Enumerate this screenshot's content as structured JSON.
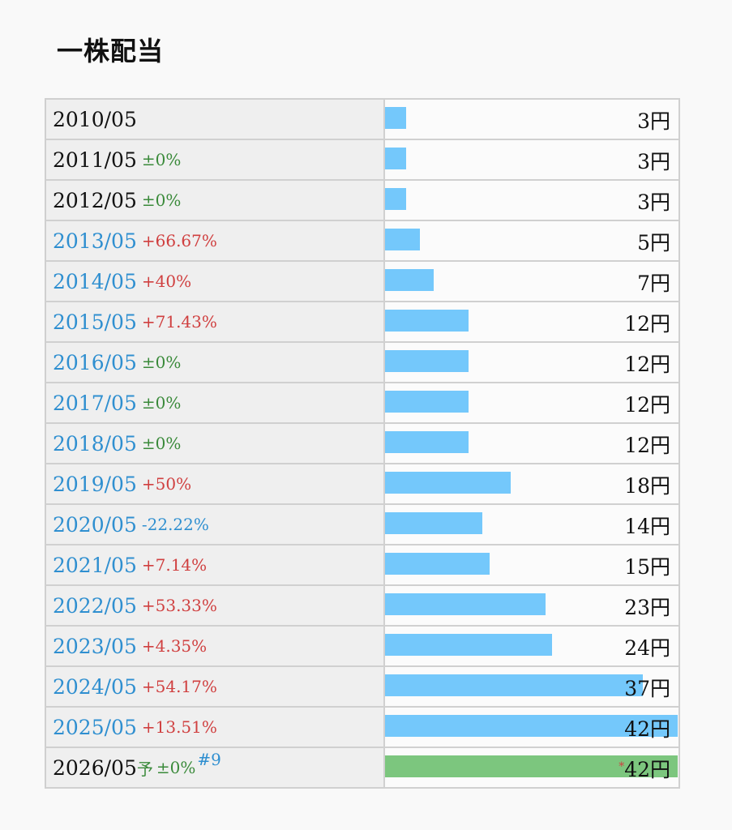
{
  "title": "一株配当",
  "chart_data": {
    "type": "bar",
    "title": "一株配当",
    "unit": "円",
    "xlim": [
      0,
      42
    ],
    "rows": [
      {
        "period": "2010/05",
        "change": "",
        "change_color": "green",
        "year_color": "black",
        "value": 3,
        "value_label": "3円",
        "forecast": false
      },
      {
        "period": "2011/05",
        "change": "±0%",
        "change_color": "green",
        "year_color": "black",
        "value": 3,
        "value_label": "3円",
        "forecast": false
      },
      {
        "period": "2012/05",
        "change": "±0%",
        "change_color": "green",
        "year_color": "black",
        "value": 3,
        "value_label": "3円",
        "forecast": false
      },
      {
        "period": "2013/05",
        "change": "+66.67%",
        "change_color": "red",
        "year_color": "blue",
        "value": 5,
        "value_label": "5円",
        "forecast": false
      },
      {
        "period": "2014/05",
        "change": "+40%",
        "change_color": "red",
        "year_color": "blue",
        "value": 7,
        "value_label": "7円",
        "forecast": false
      },
      {
        "period": "2015/05",
        "change": "+71.43%",
        "change_color": "red",
        "year_color": "blue",
        "value": 12,
        "value_label": "12円",
        "forecast": false
      },
      {
        "period": "2016/05",
        "change": "±0%",
        "change_color": "green",
        "year_color": "blue",
        "value": 12,
        "value_label": "12円",
        "forecast": false
      },
      {
        "period": "2017/05",
        "change": "±0%",
        "change_color": "green",
        "year_color": "blue",
        "value": 12,
        "value_label": "12円",
        "forecast": false
      },
      {
        "period": "2018/05",
        "change": "±0%",
        "change_color": "green",
        "year_color": "blue",
        "value": 12,
        "value_label": "12円",
        "forecast": false
      },
      {
        "period": "2019/05",
        "change": "+50%",
        "change_color": "red",
        "year_color": "blue",
        "value": 18,
        "value_label": "18円",
        "forecast": false
      },
      {
        "period": "2020/05",
        "change": "-22.22%",
        "change_color": "blue",
        "year_color": "blue",
        "value": 14,
        "value_label": "14円",
        "forecast": false
      },
      {
        "period": "2021/05",
        "change": "+7.14%",
        "change_color": "red",
        "year_color": "blue",
        "value": 15,
        "value_label": "15円",
        "forecast": false
      },
      {
        "period": "2022/05",
        "change": "+53.33%",
        "change_color": "red",
        "year_color": "blue",
        "value": 23,
        "value_label": "23円",
        "forecast": false
      },
      {
        "period": "2023/05",
        "change": "+4.35%",
        "change_color": "red",
        "year_color": "blue",
        "value": 24,
        "value_label": "24円",
        "forecast": false
      },
      {
        "period": "2024/05",
        "change": "+54.17%",
        "change_color": "red",
        "year_color": "blue",
        "value": 37,
        "value_label": "37円",
        "forecast": false
      },
      {
        "period": "2025/05",
        "change": "+13.51%",
        "change_color": "red",
        "year_color": "blue",
        "value": 42,
        "value_label": "42円",
        "forecast": false
      },
      {
        "period": "2026/05",
        "forecast_mark": "予",
        "change": "±0%",
        "change_color": "green",
        "year_color": "black",
        "note": "#9",
        "value": 42,
        "value_label": "42円",
        "value_prefix": "*",
        "forecast": true
      }
    ]
  },
  "colors": {
    "bar": "#74c8fb",
    "forecast_bar": "#7cc67e",
    "increase": "#d04040",
    "flat": "#3a8a3a",
    "decrease": "#2f8fd0",
    "year_link": "#2f8fd0"
  }
}
